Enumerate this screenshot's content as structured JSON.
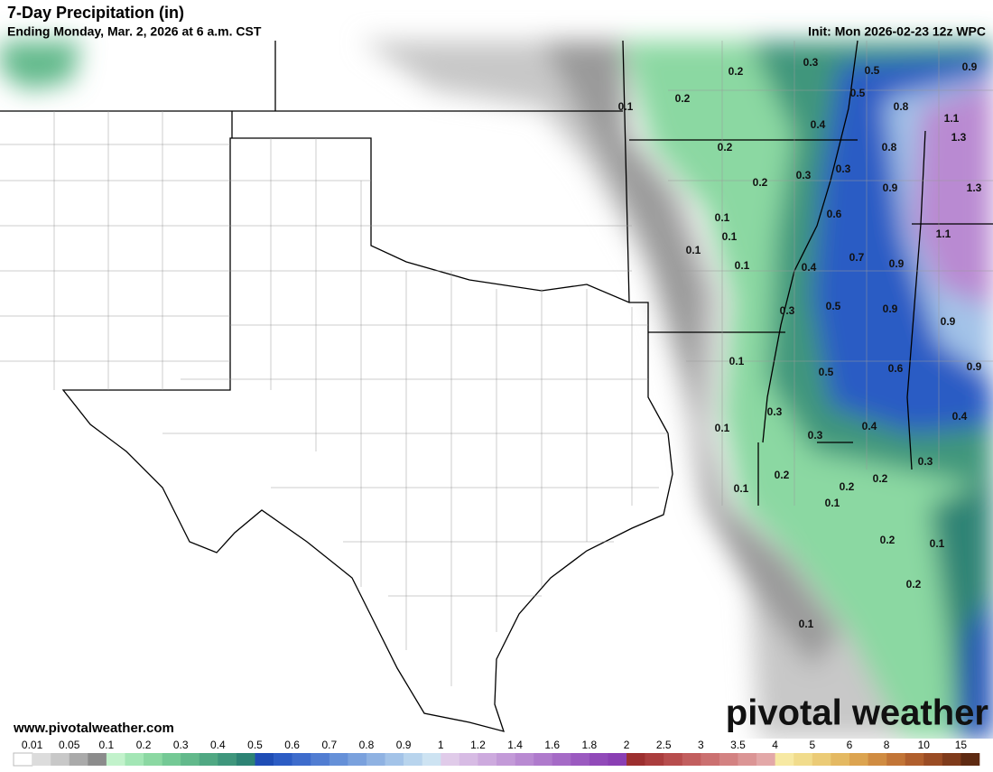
{
  "header": {
    "title": "7-Day Precipitation (in)",
    "subtitle": "Ending Monday, Mar. 2, 2026 at 6 a.m. CST",
    "init": "Init: Mon 2026-02-23 12z WPC"
  },
  "map": {
    "contour_labels": [
      "0.3",
      "0.5",
      "0.9",
      "0.2",
      "0.2",
      "0.1",
      "0.5",
      "0.8",
      "1.1",
      "0.4",
      "1.3",
      "0.2",
      "0.8",
      "0.3",
      "0.3",
      "0.2",
      "0.9",
      "1.3",
      "0.6",
      "0.1",
      "0.1",
      "1.1",
      "0.1",
      "0.7",
      "0.9",
      "0.1",
      "0.4",
      "0.5",
      "0.9",
      "0.3",
      "0.9",
      "0.1",
      "0.5",
      "0.6",
      "0.9",
      "0.3",
      "0.1",
      "0.4",
      "0.4",
      "0.3",
      "0.3",
      "0.2",
      "0.2",
      "0.1",
      "0.2",
      "0.1",
      "0.2",
      "0.1",
      "0.2",
      "0.1"
    ]
  },
  "legend": {
    "labels": [
      "0.01",
      "0.05",
      "0.1",
      "0.2",
      "0.3",
      "0.4",
      "0.5",
      "0.6",
      "0.7",
      "0.8",
      "0.9",
      "1",
      "1.2",
      "1.4",
      "1.6",
      "1.8",
      "2",
      "2.5",
      "3",
      "3.5",
      "4",
      "5",
      "6",
      "8",
      "10",
      "15"
    ],
    "colors": [
      "#ffffff",
      "#dcdcdc",
      "#c8c8c8",
      "#aaaaaa",
      "#8c8c8c",
      "#c2f2cb",
      "#a3e6b5",
      "#8bd8a2",
      "#74c995",
      "#62b98b",
      "#50a883",
      "#3f967c",
      "#2d8374",
      "#1f4db5",
      "#2c5cc4",
      "#3e6ccc",
      "#517dd2",
      "#6590d8",
      "#7aa1dd",
      "#8fb2e2",
      "#a3c3e8",
      "#b8d4ed",
      "#cde3f2",
      "#e0cbe9",
      "#d7bbe4",
      "#cdaade",
      "#c39ad8",
      "#b98ad2",
      "#af7acc",
      "#a56ac6",
      "#9b5ac0",
      "#914ab9",
      "#8a3fb3",
      "#9c2f2f",
      "#aa3d3d",
      "#b74d4d",
      "#c25e5e",
      "#cb7070",
      "#d38282",
      "#db9595",
      "#e3a8a8",
      "#f7e9a3",
      "#f1dc8c",
      "#ebcb76",
      "#e4b962",
      "#dca450",
      "#d08c42",
      "#c27537",
      "#b05f2d",
      "#9a4c24",
      "#7f3b1b",
      "#5e2a12"
    ]
  },
  "footer": {
    "website": "www.pivotalweather.com",
    "logo": "pivotal weather"
  }
}
